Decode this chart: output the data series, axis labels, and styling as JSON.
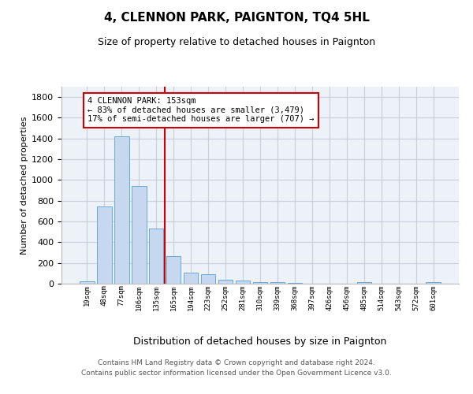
{
  "title": "4, CLENNON PARK, PAIGNTON, TQ4 5HL",
  "subtitle": "Size of property relative to detached houses in Paignton",
  "xlabel": "Distribution of detached houses by size in Paignton",
  "ylabel": "Number of detached properties",
  "footer_line1": "Contains HM Land Registry data © Crown copyright and database right 2024.",
  "footer_line2": "Contains public sector information licensed under the Open Government Licence v3.0.",
  "annotation_line1": "4 CLENNON PARK: 153sqm",
  "annotation_line2": "← 83% of detached houses are smaller (3,479)",
  "annotation_line3": "17% of semi-detached houses are larger (707) →",
  "bar_color": "#c5d8ef",
  "bar_edge_color": "#6aaad4",
  "vline_color": "#cc0000",
  "vline_x": 4.5,
  "categories": [
    "19sqm",
    "48sqm",
    "77sqm",
    "106sqm",
    "135sqm",
    "165sqm",
    "194sqm",
    "223sqm",
    "252sqm",
    "281sqm",
    "310sqm",
    "339sqm",
    "368sqm",
    "397sqm",
    "426sqm",
    "456sqm",
    "485sqm",
    "514sqm",
    "543sqm",
    "572sqm",
    "601sqm"
  ],
  "values": [
    22,
    745,
    1425,
    940,
    530,
    265,
    105,
    90,
    38,
    28,
    15,
    13,
    5,
    3,
    2,
    1,
    15,
    0,
    0,
    0,
    12
  ],
  "ylim": [
    0,
    1900
  ],
  "yticks": [
    0,
    200,
    400,
    600,
    800,
    1000,
    1200,
    1400,
    1600,
    1800
  ],
  "grid_color": "#c8d0dc",
  "background_color": "#ffffff",
  "plot_bg_color": "#edf1f8",
  "title_fontsize": 11,
  "subtitle_fontsize": 9,
  "ylabel_fontsize": 8,
  "xlabel_fontsize": 9,
  "ytick_fontsize": 8,
  "xtick_fontsize": 6.5,
  "anno_fontsize": 7.5,
  "footer_fontsize": 6.5
}
